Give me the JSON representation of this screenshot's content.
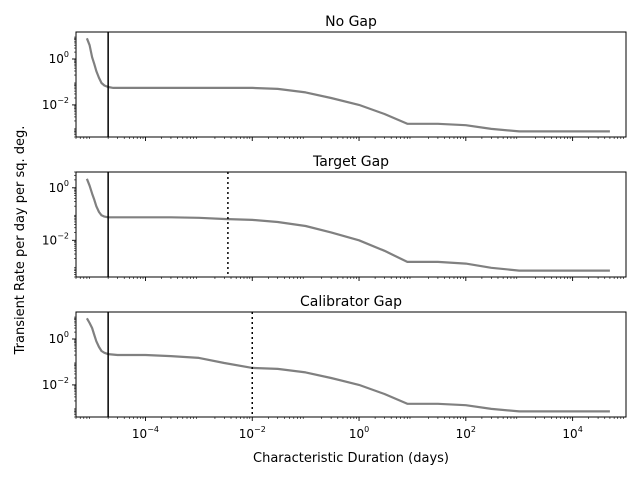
{
  "figure": {
    "shared_ylabel": "Transient Rate per day per sq. deg.",
    "shared_xlabel": "Characteristic Duration (days)"
  },
  "chart_data": [
    {
      "type": "line",
      "title": "No Gap",
      "xscale": "log",
      "yscale": "log",
      "xlim": [
        "5e-6",
        "1e5"
      ],
      "ylim": [
        "0.0004",
        "15"
      ],
      "x_ticks": [
        "10^-4",
        "10^-2",
        "10^0",
        "10^2",
        "10^4"
      ],
      "y_ticks": [
        "10^0",
        "10^-2"
      ],
      "line_color": "#808080",
      "vlines": [
        {
          "x": "2e-5",
          "style": "solid"
        }
      ],
      "series": [
        {
          "x": [
            8e-06,
            9e-06,
            1e-05,
            1.1e-05,
            1.2e-05,
            1.35e-05,
            1.5e-05,
            1.7e-05,
            2e-05,
            2.5e-05,
            3e-05,
            5e-05,
            0.0001,
            0.0003,
            0.001,
            0.003,
            0.01,
            0.03,
            0.1,
            0.3,
            1,
            3,
            8,
            10,
            30,
            100,
            300,
            1000,
            10000,
            50000
          ],
          "y": [
            8,
            4,
            1.2,
            0.6,
            0.3,
            0.15,
            0.09,
            0.07,
            0.06,
            0.055,
            0.055,
            0.055,
            0.055,
            0.055,
            0.055,
            0.055,
            0.055,
            0.05,
            0.035,
            0.02,
            0.01,
            0.004,
            0.0015,
            0.0015,
            0.0015,
            0.0013,
            0.0009,
            0.0007,
            0.0007,
            0.0007
          ]
        }
      ]
    },
    {
      "type": "line",
      "title": "Target Gap",
      "xscale": "log",
      "yscale": "log",
      "xlim": [
        "5e-6",
        "1e5"
      ],
      "ylim": [
        "0.0004",
        "4"
      ],
      "x_ticks": [
        "10^-4",
        "10^-2",
        "10^0",
        "10^2",
        "10^4"
      ],
      "y_ticks": [
        "10^0",
        "10^-2"
      ],
      "line_color": "#808080",
      "vlines": [
        {
          "x": "2e-5",
          "style": "solid"
        },
        {
          "x": "0.0035",
          "style": "dotted"
        }
      ],
      "series": [
        {
          "x": [
            8e-06,
            9e-06,
            1e-05,
            1.1e-05,
            1.2e-05,
            1.35e-05,
            1.5e-05,
            1.7e-05,
            2e-05,
            3e-05,
            0.0001,
            0.0003,
            0.001,
            0.003,
            0.01,
            0.03,
            0.1,
            0.3,
            1,
            3,
            8,
            10,
            30,
            100,
            300,
            1000,
            10000,
            50000
          ],
          "y": [
            2.2,
            1.2,
            0.6,
            0.35,
            0.2,
            0.12,
            0.09,
            0.08,
            0.075,
            0.075,
            0.075,
            0.075,
            0.072,
            0.065,
            0.06,
            0.05,
            0.035,
            0.02,
            0.01,
            0.004,
            0.0015,
            0.0015,
            0.0015,
            0.0013,
            0.0009,
            0.0007,
            0.0007,
            0.0007
          ]
        }
      ]
    },
    {
      "type": "line",
      "title": "Calibrator Gap",
      "xscale": "log",
      "yscale": "log",
      "xlim": [
        "5e-6",
        "1e5"
      ],
      "ylim": [
        "0.0004",
        "15"
      ],
      "x_ticks": [
        "10^-4",
        "10^-2",
        "10^0",
        "10^2",
        "10^4"
      ],
      "y_ticks": [
        "10^0",
        "10^-2"
      ],
      "line_color": "#808080",
      "vlines": [
        {
          "x": "2e-5",
          "style": "solid"
        },
        {
          "x": "0.01",
          "style": "dotted"
        }
      ],
      "series": [
        {
          "x": [
            8e-06,
            9e-06,
            1e-05,
            1.1e-05,
            1.2e-05,
            1.35e-05,
            1.5e-05,
            1.7e-05,
            2e-05,
            3e-05,
            0.0001,
            0.0003,
            0.001,
            0.003,
            0.01,
            0.03,
            0.1,
            0.3,
            1,
            3,
            8,
            10,
            30,
            100,
            300,
            1000,
            10000,
            50000
          ],
          "y": [
            8,
            5,
            3,
            1.5,
            0.8,
            0.45,
            0.3,
            0.25,
            0.22,
            0.2,
            0.2,
            0.18,
            0.15,
            0.09,
            0.055,
            0.05,
            0.035,
            0.02,
            0.01,
            0.004,
            0.0015,
            0.0015,
            0.0015,
            0.0013,
            0.0009,
            0.0007,
            0.0007,
            0.0007
          ]
        }
      ]
    }
  ]
}
